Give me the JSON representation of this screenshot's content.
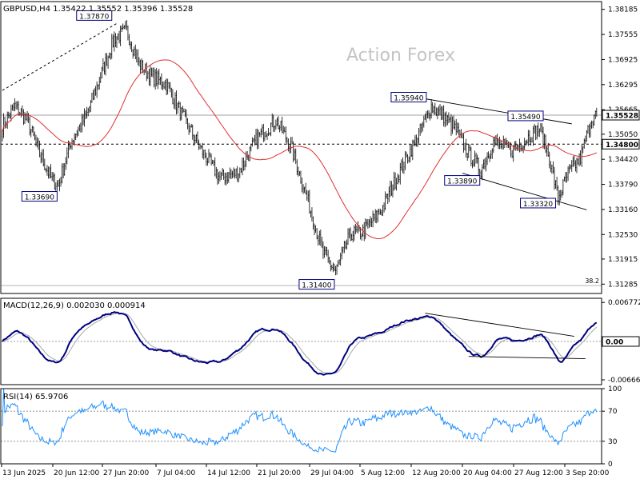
{
  "colors": {
    "background": "#ffffff",
    "border": "#000000",
    "candle": "#000000",
    "ma": "#e03030",
    "macd": "#000080",
    "signal": "#a8a8a8",
    "rsi": "#1e90ff",
    "watermark": "#c4c4c4",
    "price_line": "#808080",
    "label_box": "#000080"
  },
  "chart_data": [
    {
      "type": "candlestick",
      "name": "main",
      "header": "GBPUSD,H4  1.35422 1.35552 1.35396 1.35528",
      "watermark": "Action Forex",
      "ylim": [
        1.3105,
        1.3838
      ],
      "y_ticks": [
        "1.38185",
        "1.37555",
        "1.36925",
        "1.36295",
        "1.35665",
        "1.35050",
        "1.34420",
        "1.33790",
        "1.33160",
        "1.32530",
        "1.31915",
        "1.31285"
      ],
      "current_price_label": "1.35528",
      "current_price": 1.35528,
      "horizontal_line_label": "1.34800",
      "horizontal_line": 1.348,
      "fib_label": "38.2",
      "fib_level": 1.3125,
      "x_ticks": [
        "13 Jun 2025",
        "20 Jun 12:00",
        "27 Jun 20:00",
        "7 Jul 04:00",
        "14 Jul 12:00",
        "21 Jul 20:00",
        "29 Jul 04:00",
        "5 Aug 12:00",
        "12 Aug 20:00",
        "20 Aug 04:00",
        "27 Aug 12:00",
        "3 Sep 20:00"
      ],
      "annotations": [
        {
          "text": "1.37870",
          "price": 1.3787
        },
        {
          "text": "1.33690",
          "price": 1.3369
        },
        {
          "text": "1.31400",
          "price": 1.314
        },
        {
          "text": "1.35940",
          "price": 1.3594
        },
        {
          "text": "1.35490",
          "price": 1.3549
        },
        {
          "text": "1.33890",
          "price": 1.3389
        },
        {
          "text": "1.33320",
          "price": 1.3332
        }
      ],
      "close_path": [
        {
          "i": 0,
          "close": 1.3525
        },
        {
          "i": 10,
          "close": 1.3575
        },
        {
          "i": 20,
          "close": 1.354
        },
        {
          "i": 30,
          "close": 1.3455
        },
        {
          "i": 40,
          "close": 1.339
        },
        {
          "i": 45,
          "close": 1.3375
        },
        {
          "i": 55,
          "close": 1.3485
        },
        {
          "i": 68,
          "close": 1.3555
        },
        {
          "i": 80,
          "close": 1.366
        },
        {
          "i": 90,
          "close": 1.3745
        },
        {
          "i": 100,
          "close": 1.3765
        },
        {
          "i": 110,
          "close": 1.368
        },
        {
          "i": 120,
          "close": 1.365
        },
        {
          "i": 132,
          "close": 1.363
        },
        {
          "i": 145,
          "close": 1.355
        },
        {
          "i": 160,
          "close": 1.3465
        },
        {
          "i": 175,
          "close": 1.3395
        },
        {
          "i": 190,
          "close": 1.341
        },
        {
          "i": 205,
          "close": 1.3495
        },
        {
          "i": 220,
          "close": 1.354
        },
        {
          "i": 232,
          "close": 1.3475
        },
        {
          "i": 245,
          "close": 1.3345
        },
        {
          "i": 258,
          "close": 1.3205
        },
        {
          "i": 268,
          "close": 1.316
        },
        {
          "i": 280,
          "close": 1.3255
        },
        {
          "i": 290,
          "close": 1.326
        },
        {
          "i": 305,
          "close": 1.3315
        },
        {
          "i": 320,
          "close": 1.3415
        },
        {
          "i": 335,
          "close": 1.3505
        },
        {
          "i": 345,
          "close": 1.3575
        },
        {
          "i": 355,
          "close": 1.355
        },
        {
          "i": 365,
          "close": 1.3515
        },
        {
          "i": 375,
          "close": 1.3455
        },
        {
          "i": 385,
          "close": 1.3415
        },
        {
          "i": 395,
          "close": 1.3485
        },
        {
          "i": 410,
          "close": 1.3465
        },
        {
          "i": 422,
          "close": 1.3495
        },
        {
          "i": 432,
          "close": 1.352
        },
        {
          "i": 440,
          "close": 1.3445
        },
        {
          "i": 447,
          "close": 1.3345
        },
        {
          "i": 455,
          "close": 1.3405
        },
        {
          "i": 465,
          "close": 1.3445
        },
        {
          "i": 474,
          "close": 1.3545
        },
        {
          "i": 478,
          "close": 1.35528
        }
      ]
    },
    {
      "type": "line",
      "name": "macd",
      "label": "MACD(12,26,9) 0.002030 0.000914",
      "ylim": [
        -0.0075,
        0.0075
      ],
      "y_ticks": [
        "0.006772",
        "0.00",
        "-0.006667"
      ],
      "y_tick_values": [
        0.006772,
        0.0,
        -0.006667
      ],
      "current_label": "0.00",
      "current_value": 0.0
    },
    {
      "type": "line",
      "name": "rsi",
      "label": "RSI(14) 65.9706",
      "ylim": [
        0,
        100
      ],
      "y_ticks": [
        "100",
        "70",
        "30",
        "0"
      ],
      "y_tick_values": [
        100,
        70,
        30,
        0
      ],
      "levels": [
        70,
        30
      ]
    }
  ]
}
